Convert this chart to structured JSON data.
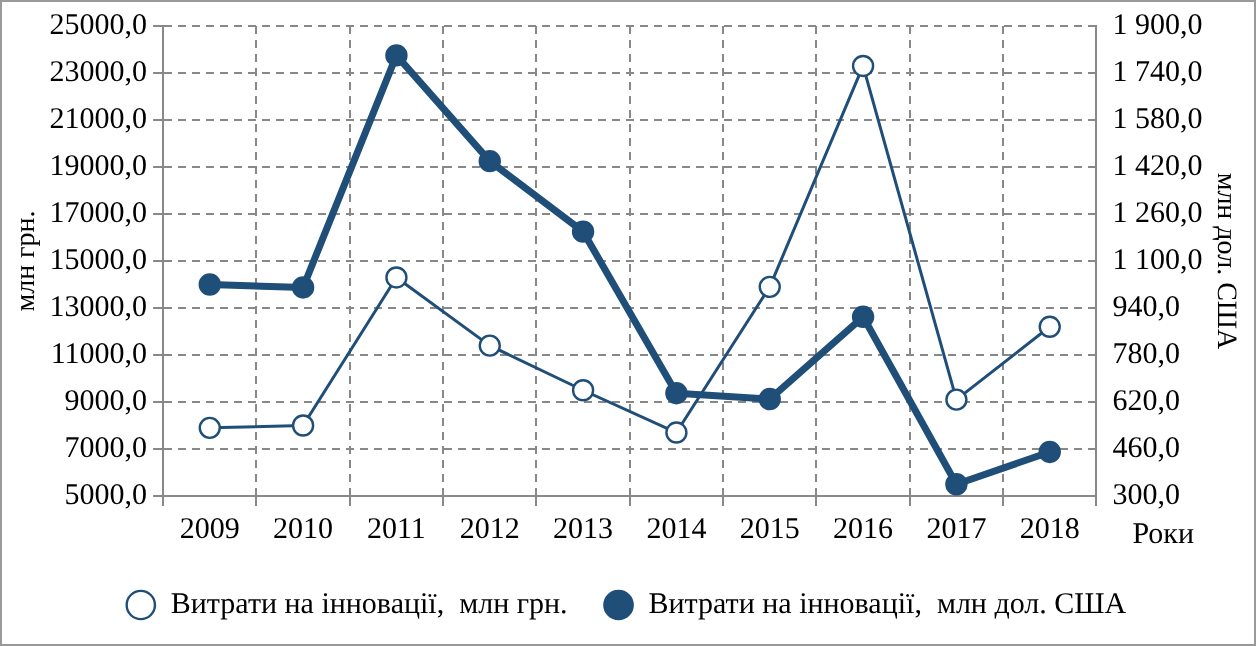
{
  "chart_data": {
    "type": "line",
    "categories": [
      "2009",
      "2010",
      "2011",
      "2012",
      "2013",
      "2014",
      "2015",
      "2016",
      "2017",
      "2018"
    ],
    "xlabel": "Роки",
    "ylabel": "млн грн.",
    "y2label": "млн дол. США",
    "series": [
      {
        "name": "Витрати на інновації,  млн грн.",
        "color": "#1f4e79",
        "axis": "y",
        "values": [
          7900,
          8000,
          14300,
          11400,
          9500,
          7700,
          13900,
          23300,
          9100,
          12200
        ]
      },
      {
        "name": "Витрати на інновації,  млн дол. США",
        "color": "#1f4e79",
        "axis": "y2",
        "values": [
          1020,
          1010,
          1800,
          1440,
          1200,
          650,
          630,
          910,
          340,
          450
        ]
      }
    ],
    "ylim": [
      5000,
      25000
    ],
    "yticks": [
      {
        "value": 5000,
        "label": "5000,0"
      },
      {
        "value": 7000,
        "label": "7000,0"
      },
      {
        "value": 9000,
        "label": "9000,0"
      },
      {
        "value": 11000,
        "label": "11000,0"
      },
      {
        "value": 13000,
        "label": "13000,0"
      },
      {
        "value": 15000,
        "label": "15000,0"
      },
      {
        "value": 17000,
        "label": "17000,0"
      },
      {
        "value": 19000,
        "label": "19000,0"
      },
      {
        "value": 21000,
        "label": "21000,0"
      },
      {
        "value": 23000,
        "label": "23000,0"
      },
      {
        "value": 25000,
        "label": "25000,0"
      }
    ],
    "y2lim": [
      300,
      1900
    ],
    "y2ticks": [
      {
        "value": 300,
        "label": "300,0"
      },
      {
        "value": 460,
        "label": "460,0"
      },
      {
        "value": 620,
        "label": "620,0"
      },
      {
        "value": 780,
        "label": "780,0"
      },
      {
        "value": 940,
        "label": "940,0"
      },
      {
        "value": 1100,
        "label": "1 100,0"
      },
      {
        "value": 1260,
        "label": "1 260,0"
      },
      {
        "value": 1420,
        "label": "1 420,0"
      },
      {
        "value": 1580,
        "label": "1 580,0"
      },
      {
        "value": 1740,
        "label": "1 740,0"
      },
      {
        "value": 1900,
        "label": "1 900,0"
      }
    ],
    "grid": true,
    "legend": "bottom",
    "marker": "circle",
    "line_style": "solid"
  }
}
